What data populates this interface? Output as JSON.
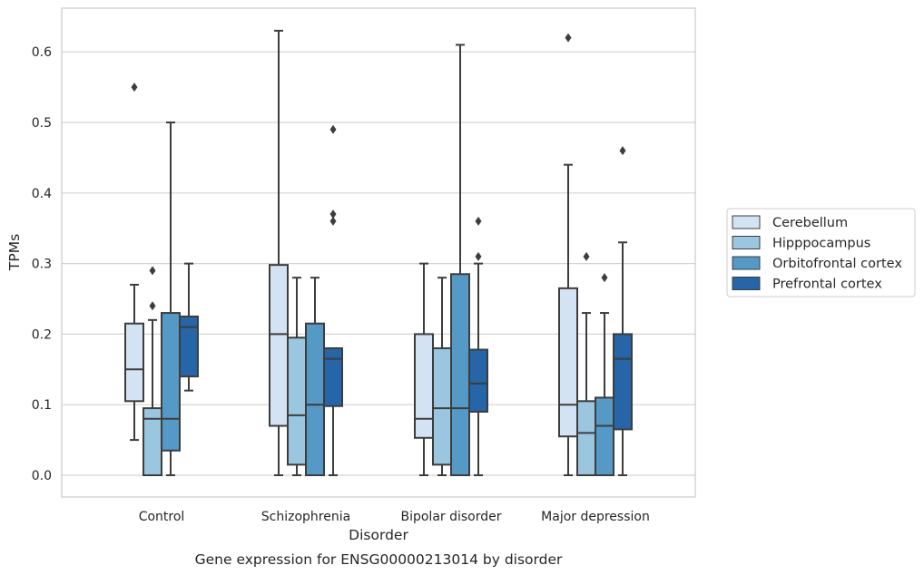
{
  "chart_data": {
    "type": "box",
    "title": "Gene expression for ENSG00000213014 by disorder",
    "xlabel": "Disorder",
    "ylabel": "TPMs",
    "categories": [
      "Control",
      "Schizophrenia",
      "Bipolar disorder",
      "Major depression"
    ],
    "ylim": [
      -0.03,
      0.66
    ],
    "yticks": [
      "0.0",
      "0.1",
      "0.2",
      "0.3",
      "0.4",
      "0.5",
      "0.6"
    ],
    "grid": "horizontal",
    "legend_position": "right",
    "colors": [
      "#d3e3f3",
      "#9ac6df",
      "#5599c7",
      "#2565a8"
    ],
    "series": [
      {
        "name": "Cerebellum",
        "boxes": [
          {
            "whislo": 0.05,
            "q1": 0.105,
            "med": 0.15,
            "q3": 0.215,
            "whishi": 0.27,
            "fliers": [
              0.55
            ]
          },
          {
            "whislo": 0.0,
            "q1": 0.07,
            "med": 0.2,
            "q3": 0.298,
            "whishi": 0.63,
            "fliers": []
          },
          {
            "whislo": 0.0,
            "q1": 0.053,
            "med": 0.08,
            "q3": 0.2,
            "whishi": 0.3,
            "fliers": []
          },
          {
            "whislo": 0.0,
            "q1": 0.055,
            "med": 0.1,
            "q3": 0.265,
            "whishi": 0.44,
            "fliers": [
              0.62
            ]
          }
        ]
      },
      {
        "name": "Hipppocampus",
        "boxes": [
          {
            "whislo": 0.0,
            "q1": 0.0,
            "med": 0.08,
            "q3": 0.095,
            "whishi": 0.22,
            "fliers": [
              0.24,
              0.29
            ]
          },
          {
            "whislo": 0.0,
            "q1": 0.015,
            "med": 0.085,
            "q3": 0.195,
            "whishi": 0.28,
            "fliers": []
          },
          {
            "whislo": 0.0,
            "q1": 0.015,
            "med": 0.095,
            "q3": 0.18,
            "whishi": 0.28,
            "fliers": []
          },
          {
            "whislo": 0.0,
            "q1": 0.0,
            "med": 0.06,
            "q3": 0.105,
            "whishi": 0.23,
            "fliers": [
              0.31
            ]
          }
        ]
      },
      {
        "name": "Orbitofrontal cortex",
        "boxes": [
          {
            "whislo": 0.0,
            "q1": 0.035,
            "med": 0.08,
            "q3": 0.23,
            "whishi": 0.5,
            "fliers": []
          },
          {
            "whislo": 0.0,
            "q1": 0.0,
            "med": 0.1,
            "q3": 0.215,
            "whishi": 0.28,
            "fliers": []
          },
          {
            "whislo": 0.0,
            "q1": 0.0,
            "med": 0.095,
            "q3": 0.285,
            "whishi": 0.61,
            "fliers": []
          },
          {
            "whislo": 0.0,
            "q1": 0.0,
            "med": 0.07,
            "q3": 0.11,
            "whishi": 0.23,
            "fliers": [
              0.28
            ]
          }
        ]
      },
      {
        "name": "Prefrontal cortex",
        "boxes": [
          {
            "whislo": 0.12,
            "q1": 0.14,
            "med": 0.21,
            "q3": 0.225,
            "whishi": 0.3,
            "fliers": []
          },
          {
            "whislo": 0.0,
            "q1": 0.098,
            "med": 0.165,
            "q3": 0.18,
            "whishi": 0.18,
            "fliers": [
              0.36,
              0.37,
              0.49
            ]
          },
          {
            "whislo": 0.0,
            "q1": 0.09,
            "med": 0.13,
            "q3": 0.178,
            "whishi": 0.3,
            "fliers": [
              0.31,
              0.36
            ]
          },
          {
            "whislo": 0.0,
            "q1": 0.065,
            "med": 0.165,
            "q3": 0.2,
            "whishi": 0.33,
            "fliers": [
              0.46
            ]
          }
        ]
      }
    ]
  }
}
